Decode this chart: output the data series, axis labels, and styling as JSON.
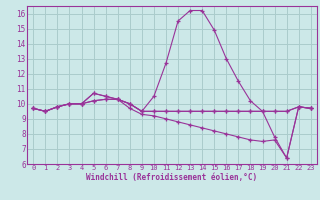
{
  "xlabel": "Windchill (Refroidissement éolien,°C)",
  "background_color": "#cce8e8",
  "line_color": "#993399",
  "grid_color": "#aacccc",
  "xlim": [
    -0.5,
    23.5
  ],
  "ylim": [
    6,
    16.5
  ],
  "xticks": [
    0,
    1,
    2,
    3,
    4,
    5,
    6,
    7,
    8,
    9,
    10,
    11,
    12,
    13,
    14,
    15,
    16,
    17,
    18,
    19,
    20,
    21,
    22,
    23
  ],
  "yticks": [
    6,
    7,
    8,
    9,
    10,
    11,
    12,
    13,
    14,
    15,
    16
  ],
  "series": [
    [
      9.7,
      9.5,
      9.8,
      10.0,
      10.0,
      10.7,
      10.5,
      10.3,
      10.0,
      9.5,
      10.5,
      12.7,
      15.5,
      16.2,
      16.2,
      14.9,
      13.0,
      11.5,
      10.2,
      9.5,
      9.5,
      9.5,
      9.8,
      9.7
    ],
    [
      9.7,
      9.5,
      9.8,
      10.0,
      10.0,
      10.2,
      10.3,
      10.3,
      10.0,
      9.5,
      9.5,
      9.5,
      9.5,
      9.5,
      9.5,
      9.5,
      9.5,
      9.5,
      9.5,
      9.5,
      9.5,
      9.5,
      9.8,
      9.7
    ],
    [
      9.7,
      9.5,
      9.8,
      10.0,
      10.0,
      10.2,
      10.3,
      10.3,
      9.7,
      9.3,
      9.2,
      9.0,
      8.8,
      8.6,
      8.4,
      8.2,
      8.0,
      7.8,
      7.6,
      7.5,
      7.6,
      6.4,
      9.8,
      9.7
    ],
    [
      9.7,
      9.5,
      9.8,
      10.0,
      10.0,
      10.7,
      10.5,
      10.3,
      10.0,
      9.5,
      9.5,
      9.5,
      9.5,
      9.5,
      9.5,
      9.5,
      9.5,
      9.5,
      9.5,
      9.5,
      7.8,
      6.4,
      9.8,
      9.7
    ]
  ]
}
